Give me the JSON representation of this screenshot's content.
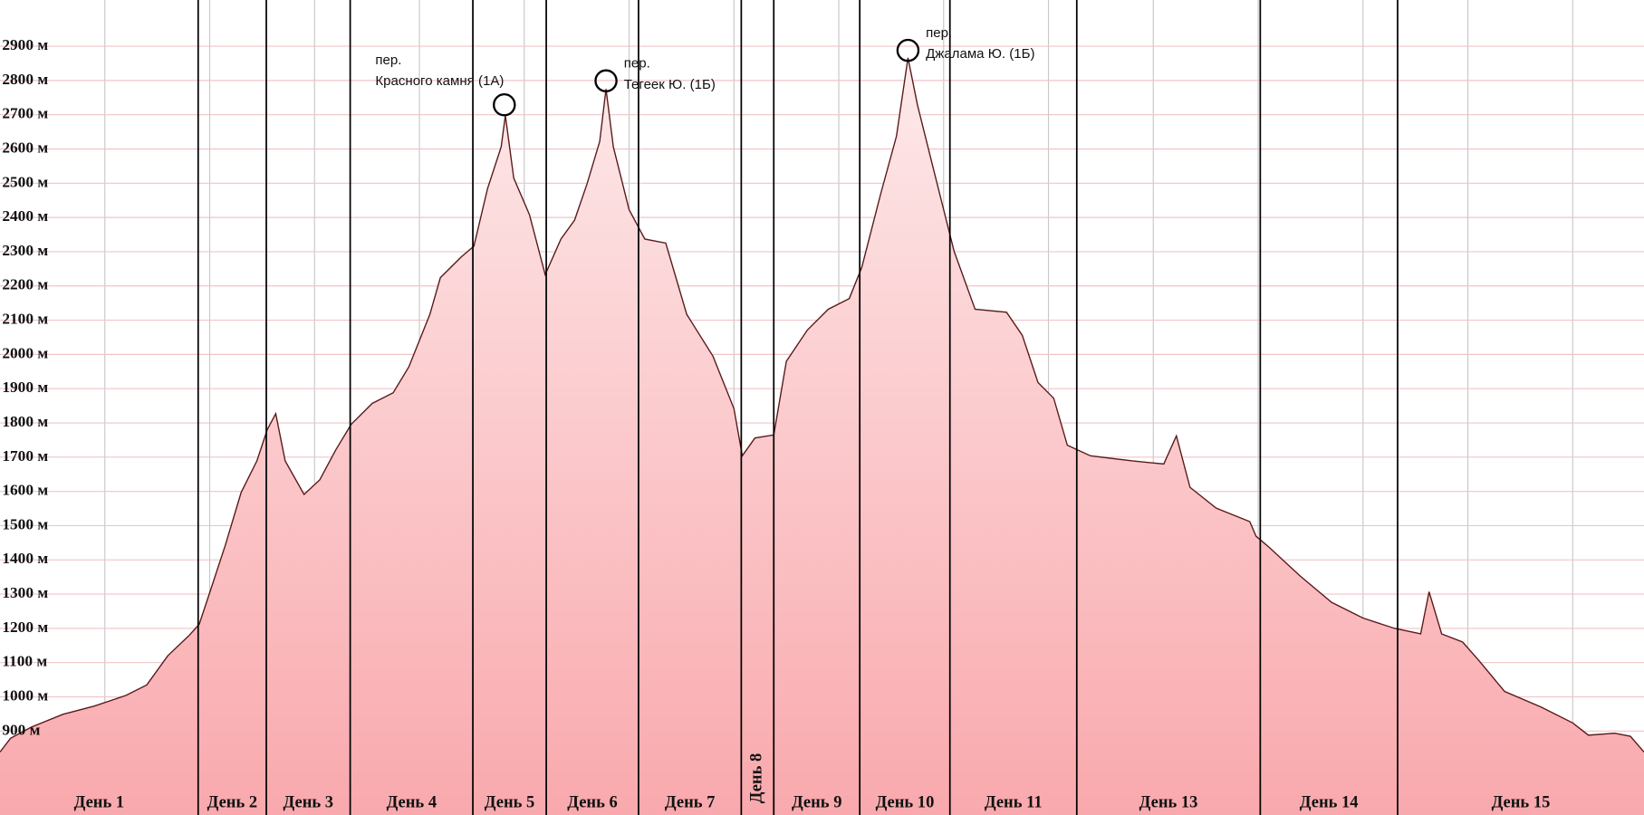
{
  "chart_data": {
    "type": "area",
    "x": [
      0,
      10,
      30,
      60,
      90,
      120,
      140,
      160,
      180,
      190,
      200,
      215,
      230,
      245,
      255,
      263,
      272,
      290,
      305,
      320,
      335,
      355,
      375,
      390,
      410,
      420,
      440,
      452,
      465,
      478,
      482,
      490,
      505,
      520,
      535,
      548,
      560,
      572,
      578,
      585,
      600,
      615,
      635,
      655,
      680,
      700,
      708,
      720,
      738,
      750,
      770,
      790,
      810,
      822,
      840,
      855,
      866,
      875,
      890,
      910,
      930,
      960,
      975,
      990,
      1005,
      1018,
      1040,
      1080,
      1110,
      1122,
      1135,
      1160,
      1192,
      1198,
      1210,
      1240,
      1270,
      1300,
      1330,
      1355,
      1363,
      1375,
      1395,
      1410,
      1435,
      1470,
      1500,
      1515,
      1540,
      1555,
      1568
    ],
    "values": [
      839,
      879,
      912,
      949,
      973,
      1004,
      1035,
      1120,
      1178,
      1212,
      1304,
      1444,
      1597,
      1689,
      1781,
      1827,
      1689,
      1591,
      1634,
      1720,
      1796,
      1857,
      1888,
      1964,
      2117,
      2224,
      2285,
      2316,
      2484,
      2606,
      2698,
      2515,
      2408,
      2233,
      2337,
      2392,
      2499,
      2622,
      2775,
      2606,
      2423,
      2337,
      2325,
      2117,
      1995,
      1842,
      1704,
      1756,
      1765,
      1980,
      2071,
      2132,
      2163,
      2255,
      2469,
      2637,
      2866,
      2729,
      2545,
      2301,
      2132,
      2123,
      2056,
      1918,
      1872,
      1735,
      1704,
      1689,
      1680,
      1762,
      1612,
      1551,
      1512,
      1469,
      1438,
      1353,
      1276,
      1230,
      1200,
      1184,
      1307,
      1184,
      1160,
      1108,
      1016,
      970,
      924,
      888,
      894,
      885,
      839
    ],
    "color": "#f9a9ad",
    "line_color": "#5a1a1a",
    "xlim": [
      0,
      1568
    ],
    "ylim": [
      655,
      3035
    ],
    "yticks": [
      {
        "value": 900,
        "label": "900 м"
      },
      {
        "value": 1000,
        "label": "1000 м"
      },
      {
        "value": 1100,
        "label": "1100 м"
      },
      {
        "value": 1200,
        "label": "1200 м"
      },
      {
        "value": 1300,
        "label": "1300 м"
      },
      {
        "value": 1400,
        "label": "1400 м"
      },
      {
        "value": 1500,
        "label": "1500 м"
      },
      {
        "value": 1600,
        "label": "1600 м"
      },
      {
        "value": 1700,
        "label": "1700 м"
      },
      {
        "value": 1800,
        "label": "1800 м"
      },
      {
        "value": 1900,
        "label": "1900 м"
      },
      {
        "value": 2000,
        "label": "2000 м"
      },
      {
        "value": 2100,
        "label": "2100 м"
      },
      {
        "value": 2200,
        "label": "2200 м"
      },
      {
        "value": 2300,
        "label": "2300 м"
      },
      {
        "value": 2400,
        "label": "2400 м"
      },
      {
        "value": 2500,
        "label": "2500 м"
      },
      {
        "value": 2600,
        "label": "2600 м"
      },
      {
        "value": 2700,
        "label": "2700 м"
      },
      {
        "value": 2800,
        "label": "2800 м"
      },
      {
        "value": 2900,
        "label": "2900 м"
      }
    ],
    "x_gridlines": [
      100,
      200,
      300,
      400,
      500,
      600,
      700,
      800,
      900,
      1000,
      1100,
      1200,
      1300,
      1400,
      1500
    ],
    "grid": true,
    "day_boundaries": [
      189,
      254,
      334,
      451,
      521,
      609,
      707,
      738,
      820,
      906,
      1027,
      1202,
      1333
    ],
    "day_labels": [
      "День 1",
      "День 2",
      "День 3",
      "День 4",
      "День 5",
      "День 6",
      "День 7",
      "День 8",
      "День 9",
      "День 10",
      "День 11",
      "День 13",
      "День 14",
      "День 15"
    ],
    "annotations": [
      {
        "lines": [
          "пер.",
          "Красного камня (1А)"
        ],
        "x": 481,
        "y": 2729,
        "label_side": "left"
      },
      {
        "lines": [
          "пер.",
          "Тегеек Ю. (1Б)"
        ],
        "x": 578,
        "y": 2799,
        "label_side": "right"
      },
      {
        "lines": [
          "пер.",
          "Джалама Ю. (1Б)"
        ],
        "x": 866,
        "y": 2888,
        "label_side": "right"
      }
    ]
  }
}
